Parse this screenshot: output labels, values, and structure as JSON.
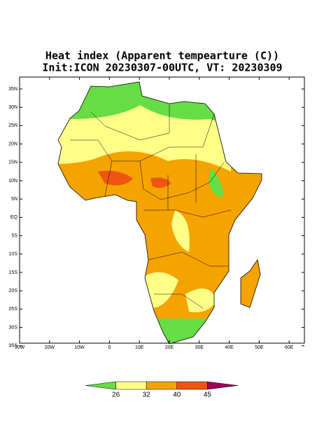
{
  "title": {
    "line1": "Heat index (Apparent tempearture (C))",
    "line2": "Init:ICON 20230307-00UTC, VT: 20230309"
  },
  "map": {
    "lat_labels": [
      "35N",
      "30N",
      "25N",
      "20N",
      "15N",
      "10N",
      "5N",
      "EQ",
      "5S",
      "10S",
      "15S",
      "20S",
      "25S",
      "30S",
      "35S"
    ],
    "lon_labels": [
      "30W",
      "20W",
      "10W",
      "0",
      "10E",
      "20E",
      "30E",
      "40E",
      "50E",
      "60E"
    ]
  },
  "colorbar": {
    "labels": [
      "26",
      "32",
      "40",
      "45"
    ],
    "colors": [
      "#66dd44",
      "#ffff88",
      "#f5a300",
      "#ee5511",
      "#a0005a"
    ]
  }
}
